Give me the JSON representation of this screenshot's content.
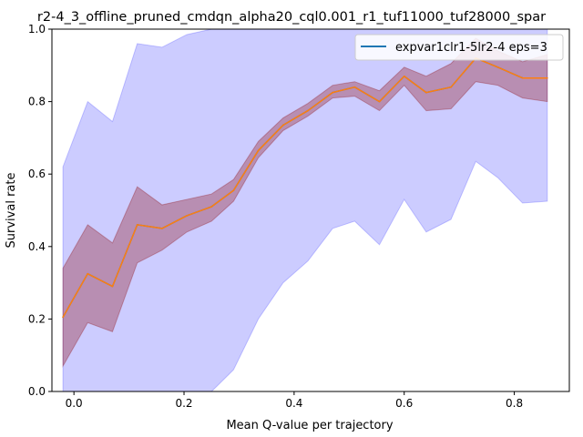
{
  "chart_data": {
    "type": "line",
    "title": "r2-4_3_offline_pruned_cmdqn_alpha20_cql0.001_r1_tuf11000_tuf28000_spar",
    "xlabel": "Mean Q-value per trajectory",
    "ylabel": "Survival rate",
    "xlim": [
      -0.04,
      0.9
    ],
    "ylim": [
      0.0,
      1.0
    ],
    "xticks": [
      "0.0",
      "0.2",
      "0.4",
      "0.6",
      "0.8"
    ],
    "yticks": [
      "0.0",
      "0.2",
      "0.4",
      "0.6",
      "0.8",
      "1.0"
    ],
    "grid": false,
    "legend_position": "top-right",
    "x": [
      -0.02,
      0.025,
      0.07,
      0.115,
      0.16,
      0.205,
      0.25,
      0.29,
      0.335,
      0.38,
      0.425,
      0.47,
      0.51,
      0.555,
      0.6,
      0.64,
      0.685,
      0.73,
      0.77,
      0.815,
      0.86
    ],
    "series": [
      {
        "name": "expvar1clr1-5lr2-4 eps=3",
        "color": "#1f77b4",
        "values": [
          0.205,
          0.325,
          0.29,
          0.46,
          0.45,
          0.485,
          0.51,
          0.555,
          0.665,
          0.735,
          0.775,
          0.825,
          0.84,
          0.8,
          0.87,
          0.825,
          0.84,
          0.92,
          0.895,
          0.865,
          0.865
        ]
      },
      {
        "color": "#ff7f0e",
        "values": [
          0.205,
          0.325,
          0.29,
          0.46,
          0.45,
          0.485,
          0.51,
          0.555,
          0.665,
          0.735,
          0.775,
          0.825,
          0.84,
          0.8,
          0.87,
          0.825,
          0.84,
          0.92,
          0.895,
          0.865,
          0.865
        ]
      }
    ],
    "bands": [
      {
        "color": "#0000ff",
        "opacity": 0.2,
        "lower": [
          0.0,
          0.0,
          0.0,
          0.0,
          0.0,
          0.0,
          0.0,
          0.06,
          0.2,
          0.3,
          0.36,
          0.45,
          0.47,
          0.405,
          0.53,
          0.44,
          0.475,
          0.635,
          0.59,
          0.52,
          0.525
        ],
        "upper": [
          0.62,
          0.8,
          0.745,
          0.96,
          0.95,
          0.985,
          1.0,
          1.0,
          1.0,
          1.0,
          1.0,
          1.0,
          1.0,
          1.0,
          1.0,
          1.0,
          1.0,
          1.0,
          1.0,
          1.0,
          1.0
        ]
      },
      {
        "color": "#8b0000",
        "opacity": 0.3,
        "lower": [
          0.07,
          0.19,
          0.165,
          0.355,
          0.39,
          0.44,
          0.47,
          0.525,
          0.645,
          0.72,
          0.76,
          0.81,
          0.815,
          0.775,
          0.845,
          0.775,
          0.78,
          0.855,
          0.845,
          0.81,
          0.8
        ],
        "upper": [
          0.34,
          0.46,
          0.41,
          0.565,
          0.515,
          0.53,
          0.545,
          0.585,
          0.69,
          0.755,
          0.795,
          0.845,
          0.855,
          0.83,
          0.895,
          0.87,
          0.905,
          0.975,
          0.94,
          0.91,
          0.93
        ]
      }
    ]
  }
}
